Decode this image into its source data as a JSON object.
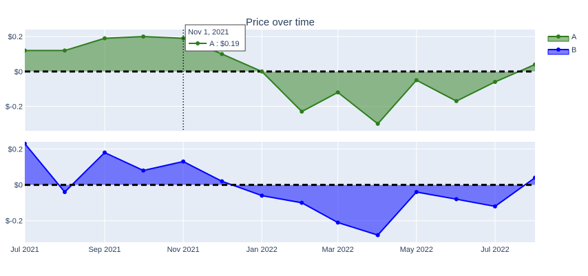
{
  "chart_data": {
    "type": "area",
    "title": "Price over time",
    "x": [
      "2021-07-01",
      "2021-08-01",
      "2021-09-01",
      "2021-10-01",
      "2021-11-01",
      "2021-12-01",
      "2022-01-01",
      "2022-02-01",
      "2022-03-01",
      "2022-04-01",
      "2022-05-01",
      "2022-06-01",
      "2022-07-01",
      "2022-08-01"
    ],
    "x_range": [
      "2021-07-01",
      "2022-08-01"
    ],
    "x_ticks": [
      {
        "date": "2021-07-01",
        "label": "Jul 2021"
      },
      {
        "date": "2021-09-01",
        "label": "Sep 2021"
      },
      {
        "date": "2021-11-01",
        "label": "Nov 2021"
      },
      {
        "date": "2022-01-01",
        "label": "Jan 2022"
      },
      {
        "date": "2022-03-01",
        "label": "Mar 2022"
      },
      {
        "date": "2022-05-01",
        "label": "May 2022"
      },
      {
        "date": "2022-07-01",
        "label": "Jul 2022"
      }
    ],
    "y_ticks": [
      {
        "value": 0.2,
        "label": "$0.2"
      },
      {
        "value": 0,
        "label": "$0"
      },
      {
        "value": -0.2,
        "label": "$-0.2"
      }
    ],
    "subplots": [
      {
        "series_name": "A",
        "color": "#2e7d1b",
        "fill": "rgba(46,125,27,0.5)",
        "ylim": [
          -0.34,
          0.24
        ],
        "values": [
          0.12,
          0.12,
          0.19,
          0.2,
          0.19,
          0.1,
          0.0,
          -0.23,
          -0.12,
          -0.3,
          -0.05,
          -0.17,
          -0.06,
          0.04
        ]
      },
      {
        "series_name": "B",
        "color": "#0000ff",
        "fill": "rgba(0,0,255,0.5)",
        "ylim": [
          -0.32,
          0.24
        ],
        "values": [
          0.23,
          -0.04,
          0.18,
          0.08,
          0.13,
          0.02,
          -0.06,
          -0.1,
          -0.21,
          -0.28,
          -0.04,
          -0.08,
          -0.12,
          0.04
        ]
      }
    ],
    "zero_line": {
      "color": "#000000",
      "style": "dashed"
    },
    "legend": {
      "position": "top-right",
      "items": [
        {
          "name": "A",
          "color": "#2e7d1b"
        },
        {
          "name": "B",
          "color": "#0000ff"
        }
      ]
    },
    "hover": {
      "date": "2021-11-01",
      "title": "Nov 1, 2021",
      "label": "A : $0.19",
      "series": "A"
    },
    "grid": true,
    "background": "#e5ecf6"
  }
}
